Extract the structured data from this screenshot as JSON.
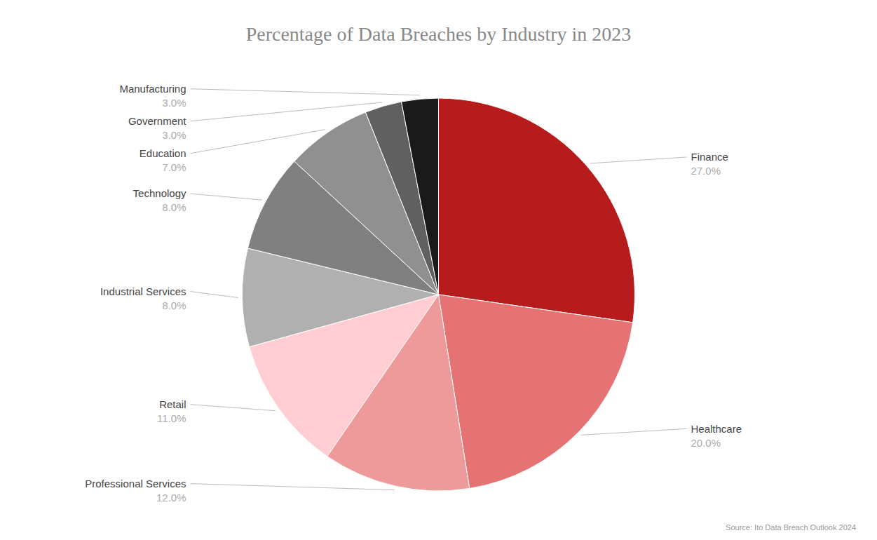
{
  "chart_data": {
    "type": "pie",
    "title": "Percentage of Data Breaches by Industry in 2023",
    "annotations": [
      "Source: Ito  Data Breach Outlook 2024"
    ],
    "categories": [
      "Finance",
      "Healthcare",
      "Professional Services",
      "Retail",
      "Industrial Services",
      "Technology",
      "Education",
      "Government",
      "Manufacturing"
    ],
    "values": [
      27.0,
      20.0,
      12.0,
      11.0,
      8.0,
      8.0,
      7.0,
      3.0,
      3.0
    ],
    "value_labels": [
      "27.0%",
      "20.0%",
      "12.0%",
      "11.0%",
      "8.0%",
      "8.0%",
      "7.0%",
      "3.0%",
      "3.0%"
    ],
    "colors": [
      "#b71c1c",
      "#e57373",
      "#ef9a9a",
      "#ffcdd2",
      "#b0b0b0",
      "#808080",
      "#909090",
      "#606060",
      "#1a1a1a"
    ],
    "data_labels": true
  }
}
